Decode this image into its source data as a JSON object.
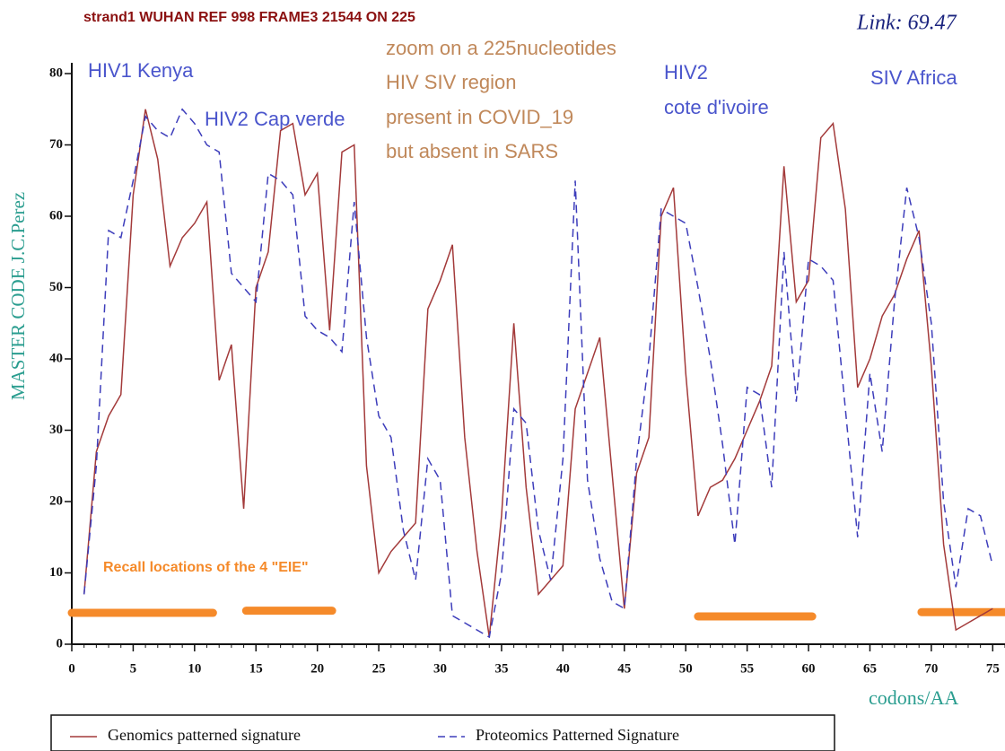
{
  "chart_data": {
    "type": "line",
    "title": "strand1 WUHAN REF 998 FRAME3  21544 ON 225",
    "link_label": "Link: 69.47",
    "y_label": "MASTER CODE J.C.Perez",
    "x_label": "codons/AA",
    "annotations": {
      "zoom": [
        "zoom on a 225nucleotides",
        "HIV SIV region",
        "present in COVID_19",
        "but absent in SARS"
      ],
      "hiv1_kenya": "HIV1 Kenya",
      "hiv2_cap_verde": "HIV2 Cap verde",
      "hiv2": [
        "HIV2",
        "cote d'ivoire"
      ],
      "siv_africa": "SIV Africa",
      "recall": "Recall locations of the 4 \"EIE\""
    },
    "x": [
      1,
      2,
      3,
      4,
      5,
      6,
      7,
      8,
      9,
      10,
      11,
      12,
      13,
      14,
      15,
      16,
      17,
      18,
      19,
      20,
      21,
      22,
      23,
      24,
      25,
      26,
      27,
      28,
      29,
      30,
      31,
      32,
      33,
      34,
      35,
      36,
      37,
      38,
      39,
      40,
      41,
      42,
      43,
      44,
      45,
      46,
      47,
      48,
      49,
      50,
      51,
      52,
      53,
      54,
      55,
      56,
      57,
      58,
      59,
      60,
      61,
      62,
      63,
      64,
      65,
      66,
      67,
      68,
      69,
      70,
      71,
      72,
      73,
      74,
      75
    ],
    "series": [
      {
        "name": "Genomics patterned signature",
        "color": "#a33a3a",
        "dash": false,
        "values": [
          7,
          27,
          32,
          35,
          63,
          75,
          68,
          53,
          57,
          59,
          62,
          37,
          42,
          19,
          50,
          55,
          72,
          73,
          63,
          66,
          44,
          69,
          70,
          25,
          10,
          13,
          15,
          17,
          47,
          51,
          56,
          29,
          13,
          1,
          18,
          45,
          22,
          7,
          9,
          11,
          33,
          38,
          43,
          24,
          5,
          24,
          29,
          60,
          64,
          38,
          18,
          22,
          23,
          26,
          30,
          34,
          39,
          67,
          48,
          51,
          71,
          73,
          61,
          36,
          40,
          46,
          49,
          54,
          58,
          39,
          14,
          2,
          3,
          4,
          5
        ]
      },
      {
        "name": "Proteomics Patterned Signature",
        "color": "#3d3dbb",
        "dash": true,
        "values": [
          7,
          25,
          58,
          57,
          65,
          74,
          72,
          71,
          75,
          73,
          70,
          69,
          52,
          50,
          48,
          66,
          65,
          63,
          46,
          44,
          43,
          41,
          62,
          43,
          32,
          29,
          16,
          9,
          26,
          23,
          4,
          3,
          2,
          1,
          10,
          33,
          31,
          16,
          9,
          26,
          65,
          23,
          12,
          6,
          5,
          26,
          40,
          61,
          60,
          59,
          50,
          40,
          28,
          14,
          36,
          35,
          22,
          55,
          34,
          54,
          53,
          51,
          33,
          15,
          38,
          27,
          48,
          64,
          57,
          45,
          20,
          8,
          19,
          18,
          11
        ]
      }
    ],
    "eie_segments": [
      {
        "x": [
          0,
          11.5
        ],
        "y": 4.4
      },
      {
        "x": [
          14.2,
          21.2
        ],
        "y": 4.7
      },
      {
        "x": [
          51,
          60.3
        ],
        "y": 3.9
      },
      {
        "x": [
          69.2,
          76
        ],
        "y": 4.5
      }
    ],
    "eie_color": "#f58a2a",
    "xlim": [
      0,
      76
    ],
    "xticks": [
      0,
      5,
      10,
      15,
      20,
      25,
      30,
      35,
      40,
      45,
      50,
      55,
      60,
      65,
      70,
      75
    ],
    "ylim": [
      0,
      80
    ],
    "yticks": [
      0,
      10,
      20,
      30,
      40,
      50,
      60,
      70,
      80
    ]
  }
}
